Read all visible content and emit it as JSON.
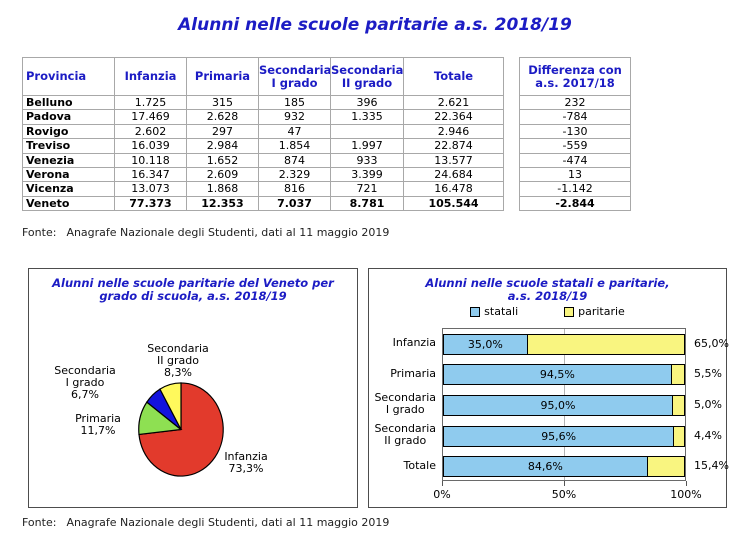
{
  "page": {
    "title": "Alunni nelle scuole paritarie a.s. 2018/19",
    "fonte_label": "Fonte:",
    "fonte_text": "Anagrafe Nazionale degli Studenti, dati al 11 maggio 2019"
  },
  "colors": {
    "title_blue": "#1c1cc4",
    "table_border": "#a8a8a8",
    "statali_blue": "#8fcbee",
    "paritarie_yellow": "#f9f580",
    "pie_red": "#e23a2c",
    "pie_green": "#8ee052",
    "pie_blue": "#1313dd",
    "pie_yellow": "#fff95c"
  },
  "table": {
    "headers": {
      "provincia": "Provincia",
      "infanzia": "Infanzia",
      "primaria": "Primaria",
      "sec1": "Secondaria\nI grado",
      "sec2": "Secondaria\nII grado",
      "totale": "Totale"
    },
    "diff_header": "Differenza con\na.s. 2017/18",
    "rows": [
      {
        "provincia": "Belluno",
        "infanzia": "1.725",
        "primaria": "315",
        "sec1": "185",
        "sec2": "396",
        "totale": "2.621",
        "diff": "232"
      },
      {
        "provincia": "Padova",
        "infanzia": "17.469",
        "primaria": "2.628",
        "sec1": "932",
        "sec2": "1.335",
        "totale": "22.364",
        "diff": "-784"
      },
      {
        "provincia": "Rovigo",
        "infanzia": "2.602",
        "primaria": "297",
        "sec1": "47",
        "sec2": "",
        "totale": "2.946",
        "diff": "-130"
      },
      {
        "provincia": "Treviso",
        "infanzia": "16.039",
        "primaria": "2.984",
        "sec1": "1.854",
        "sec2": "1.997",
        "totale": "22.874",
        "diff": "-559"
      },
      {
        "provincia": "Venezia",
        "infanzia": "10.118",
        "primaria": "1.652",
        "sec1": "874",
        "sec2": "933",
        "totale": "13.577",
        "diff": "-474"
      },
      {
        "provincia": "Verona",
        "infanzia": "16.347",
        "primaria": "2.609",
        "sec1": "2.329",
        "sec2": "3.399",
        "totale": "24.684",
        "diff": "13"
      },
      {
        "provincia": "Vicenza",
        "infanzia": "13.073",
        "primaria": "1.868",
        "sec1": "816",
        "sec2": "721",
        "totale": "16.478",
        "diff": "-1.142"
      },
      {
        "provincia": "Veneto",
        "infanzia": "77.373",
        "primaria": "12.353",
        "sec1": "7.037",
        "sec2": "8.781",
        "totale": "105.544",
        "diff": "-2.844"
      }
    ]
  },
  "chart_data": [
    {
      "type": "pie",
      "title": "Alunni nelle scuole paritarie del Veneto per\ngrado di scuola, a.s. 2018/19",
      "labels": [
        "Infanzia",
        "Primaria",
        "Secondaria I grado",
        "Secondaria II grado"
      ],
      "values": [
        73.3,
        11.7,
        6.7,
        8.3
      ],
      "value_labels": [
        "73,3%",
        "11,7%",
        "6,7%",
        "8,3%"
      ],
      "colors": [
        "#e23a2c",
        "#8ee052",
        "#1313dd",
        "#fff95c"
      ],
      "slice_ids": [
        "infanzia",
        "primaria",
        "secondaria-1-grado",
        "secondaria-2-grado"
      ],
      "start_angle": "top",
      "direction": "clockwise",
      "legend_position": "none",
      "callouts": [
        {
          "text": "Secondaria\nII grado\n8,3%"
        },
        {
          "text": "Secondaria\nI grado\n6,7%"
        },
        {
          "text": "Primaria\n11,7%"
        },
        {
          "text": "Infanzia\n73,3%"
        }
      ]
    },
    {
      "type": "bar",
      "orientation": "horizontal-stacked",
      "title": "Alunni nelle scuole statali e paritarie,\na.s. 2018/19",
      "categories": [
        "Infanzia",
        "Primaria",
        "Secondaria\nI grado",
        "Secondaria\nII grado",
        "Totale"
      ],
      "legend": [
        "statali",
        "paritarie"
      ],
      "legend_position": "top",
      "grid": "major-x-50",
      "series": [
        {
          "name": "statali",
          "color": "#8fcbee",
          "values": [
            35.0,
            94.5,
            95.0,
            95.6,
            84.6
          ],
          "labels": [
            "35,0%",
            "94,5%",
            "95,0%",
            "95,6%",
            "84,6%"
          ]
        },
        {
          "name": "paritarie",
          "color": "#f9f580",
          "values": [
            65.0,
            5.5,
            5.0,
            4.4,
            15.4
          ],
          "labels": [
            "65,0%",
            "5,5%",
            "5,0%",
            "4,4%",
            "15,4%"
          ]
        }
      ],
      "x_ticks": [
        {
          "label": "0%",
          "value": 0
        },
        {
          "label": "50%",
          "value": 50
        },
        {
          "label": "100%",
          "value": 100
        }
      ],
      "xlim": [
        0,
        100
      ]
    }
  ]
}
